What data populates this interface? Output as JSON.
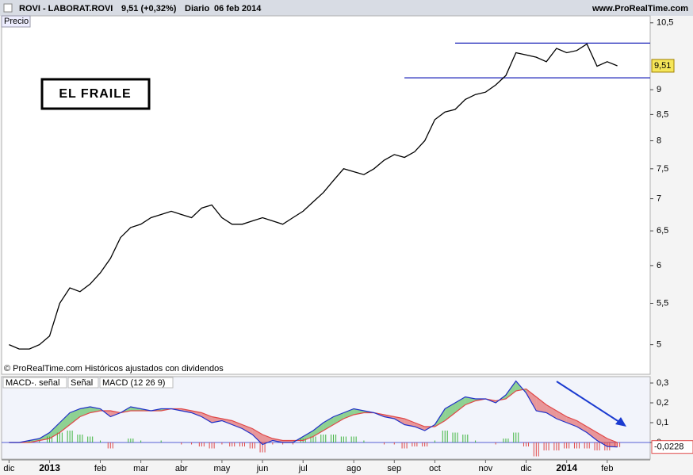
{
  "header": {
    "symbol": "ROVI - LABORAT.ROVI",
    "quote": "9,51 (+0,32%)",
    "period": "Diario",
    "date": "06 feb 2014",
    "site": "www.ProRealTime.com"
  },
  "chart_data": [
    {
      "type": "line",
      "title": "Precio",
      "annotation": "EL FRAILE",
      "footnote": "© ProRealTime.com Históricos ajustados con dividendos",
      "categories": [
        "dic",
        null,
        null,
        null,
        "2013",
        null,
        null,
        null,
        null,
        "feb",
        null,
        null,
        null,
        "mar",
        null,
        null,
        null,
        "abr",
        null,
        null,
        null,
        "may",
        null,
        null,
        null,
        "jun",
        null,
        null,
        null,
        "jul",
        null,
        null,
        null,
        null,
        "ago",
        null,
        null,
        null,
        "sep",
        null,
        null,
        null,
        "oct",
        null,
        null,
        null,
        null,
        "nov",
        null,
        null,
        null,
        "dic",
        null,
        null,
        null,
        "2014",
        null,
        null,
        null,
        "feb",
        null
      ],
      "values": [
        5.0,
        4.95,
        4.95,
        5.0,
        5.1,
        5.5,
        5.7,
        5.65,
        5.75,
        5.9,
        6.1,
        6.4,
        6.55,
        6.6,
        6.7,
        6.75,
        6.8,
        6.75,
        6.7,
        6.85,
        6.9,
        6.7,
        6.6,
        6.6,
        6.65,
        6.7,
        6.65,
        6.6,
        6.7,
        6.8,
        6.95,
        7.1,
        7.3,
        7.5,
        7.45,
        7.4,
        7.5,
        7.65,
        7.75,
        7.7,
        7.8,
        8.0,
        8.4,
        8.55,
        8.6,
        8.8,
        8.9,
        8.95,
        9.1,
        9.3,
        9.8,
        9.75,
        9.7,
        9.6,
        9.9,
        9.8,
        9.85,
        10.0,
        9.5,
        9.6,
        9.51
      ],
      "color": "#000000",
      "log": true,
      "ylim": [
        4.67,
        10.67
      ],
      "yticks": [
        {
          "value": 5,
          "label": "5"
        },
        {
          "value": 5.5,
          "label": "5,5"
        },
        {
          "value": 6,
          "label": "6"
        },
        {
          "value": 6.5,
          "label": "6,5"
        },
        {
          "value": 7,
          "label": "7"
        },
        {
          "value": 7.5,
          "label": "7,5"
        },
        {
          "value": 8,
          "label": "8"
        },
        {
          "value": 8.5,
          "label": "8,5"
        },
        {
          "value": 9,
          "label": "9"
        },
        {
          "value": 10.5,
          "label": "10,5"
        }
      ],
      "last": {
        "value": 9.51,
        "label": "9,51"
      },
      "levels": [
        {
          "value": 10.02,
          "start": 44,
          "color": "#1a22b8"
        },
        {
          "value": 9.25,
          "start": 39,
          "color": "#1a22b8"
        }
      ]
    },
    {
      "type": "macd",
      "series": [
        {
          "name": "MACD-. señal",
          "color": "#e04848",
          "up_color": "#3cb43c",
          "values": [
            0,
            0,
            0.01,
            0.01,
            0.03,
            0.05,
            0.06,
            0.04,
            0.03,
            0.01,
            -0.03,
            0,
            0.02,
            0.01,
            0,
            0.01,
            0,
            -0.01,
            -0.01,
            -0.02,
            -0.03,
            -0.01,
            -0.02,
            -0.02,
            -0.03,
            -0.05,
            -0.01,
            -0.01,
            -0.01,
            0.02,
            0.03,
            0.04,
            0.04,
            0.03,
            0.03,
            0.01,
            0,
            -0.01,
            -0.01,
            -0.03,
            -0.02,
            -0.02,
            0.01,
            0.06,
            0.05,
            0.04,
            0.01,
            0,
            -0.01,
            0.02,
            0.05,
            -0.02,
            -0.07,
            -0.04,
            -0.04,
            -0.03,
            -0.03,
            -0.03,
            -0.04,
            -0.04,
            -0.0228
          ]
        },
        {
          "name": "Señal",
          "color": "#e04848",
          "values": [
            0,
            0,
            0,
            0.01,
            0.02,
            0.05,
            0.09,
            0.13,
            0.15,
            0.16,
            0.16,
            0.15,
            0.16,
            0.16,
            0.16,
            0.16,
            0.17,
            0.17,
            0.16,
            0.15,
            0.13,
            0.12,
            0.11,
            0.09,
            0.07,
            0.04,
            0.02,
            0.01,
            0.01,
            0.01,
            0.03,
            0.06,
            0.09,
            0.12,
            0.14,
            0.15,
            0.15,
            0.14,
            0.13,
            0.12,
            0.1,
            0.08,
            0.08,
            0.11,
            0.15,
            0.19,
            0.21,
            0.22,
            0.21,
            0.22,
            0.26,
            0.27,
            0.23,
            0.19,
            0.16,
            0.13,
            0.11,
            0.08,
            0.05,
            0.02,
            0
          ]
        },
        {
          "name": "MACD (12 26 9)",
          "color": "#2030c8",
          "values": [
            0,
            0,
            0.01,
            0.02,
            0.05,
            0.1,
            0.15,
            0.17,
            0.18,
            0.17,
            0.13,
            0.15,
            0.18,
            0.17,
            0.16,
            0.17,
            0.17,
            0.16,
            0.15,
            0.13,
            0.1,
            0.11,
            0.09,
            0.07,
            0.04,
            -0.01,
            0.01,
            0,
            0,
            0.03,
            0.06,
            0.1,
            0.13,
            0.15,
            0.17,
            0.16,
            0.15,
            0.13,
            0.12,
            0.09,
            0.08,
            0.06,
            0.09,
            0.17,
            0.2,
            0.23,
            0.22,
            0.22,
            0.2,
            0.24,
            0.31,
            0.25,
            0.16,
            0.15,
            0.12,
            0.1,
            0.08,
            0.05,
            0.01,
            -0.02,
            -0.0228
          ]
        }
      ],
      "ylim": [
        -0.084,
        0.332
      ],
      "yticks": [
        0,
        {
          "value": 0.1,
          "label": "0,1"
        },
        {
          "value": 0.2,
          "label": "0,2"
        },
        {
          "value": 0.3,
          "label": "0,3"
        }
      ],
      "last": {
        "value": -0.0228,
        "label": "-0,0228"
      }
    }
  ]
}
